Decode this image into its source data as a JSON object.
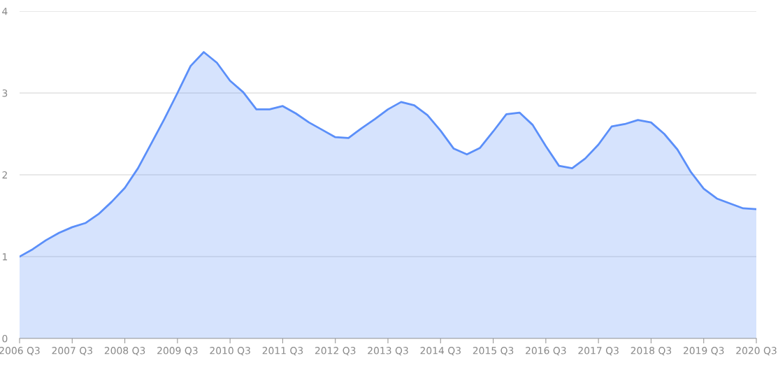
{
  "chart_data": {
    "type": "area",
    "categories": [
      "2006 Q3",
      null,
      null,
      null,
      "2007 Q3",
      null,
      null,
      null,
      "2008 Q3",
      null,
      null,
      null,
      "2009 Q3",
      null,
      null,
      null,
      "2010 Q3",
      null,
      null,
      null,
      "2011 Q3",
      null,
      null,
      null,
      "2012 Q3",
      null,
      null,
      null,
      "2013 Q3",
      null,
      null,
      null,
      "2014 Q3",
      null,
      null,
      null,
      "2015 Q3",
      null,
      null,
      null,
      "2016 Q3",
      null,
      null,
      null,
      "2017 Q3",
      null,
      null,
      null,
      "2018 Q3",
      null,
      null,
      null,
      "2019 Q3",
      null,
      null,
      null,
      "2020 Q3"
    ],
    "series": [
      {
        "color": "#5b8ff9",
        "values": [
          1.0,
          1.09,
          1.2,
          1.29,
          1.36,
          1.41,
          1.52,
          1.67,
          1.84,
          2.08,
          2.38,
          2.68,
          3.0,
          3.33,
          3.5,
          3.37,
          3.15,
          3.01,
          2.8,
          2.8,
          2.84,
          2.75,
          2.64,
          2.55,
          2.46,
          2.45,
          2.57,
          2.68,
          2.8,
          2.89,
          2.85,
          2.73,
          2.54,
          2.32,
          2.25,
          2.33,
          2.53,
          2.74,
          2.76,
          2.61,
          2.35,
          2.11,
          2.08,
          2.2,
          2.37,
          2.59,
          2.62,
          2.67,
          2.64,
          2.5,
          2.31,
          2.04,
          1.83,
          1.71,
          1.65,
          1.59,
          1.58
        ]
      }
    ],
    "ylim": [
      0,
      4
    ],
    "yticks": [
      0,
      1,
      2,
      3,
      4
    ],
    "grid": "y"
  }
}
